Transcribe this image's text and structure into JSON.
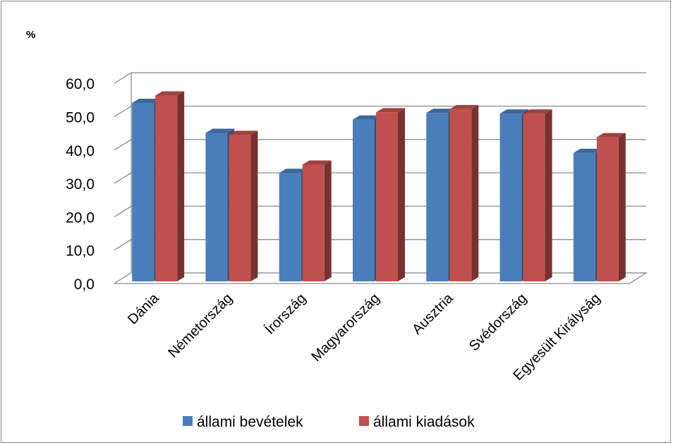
{
  "chart_data": {
    "type": "bar",
    "title": "",
    "unit_label": "%",
    "categories": [
      "Dánia",
      "Németország",
      "Írország",
      "Magyarország",
      "Ausztria",
      "Svédország",
      "Egyesült Királyság"
    ],
    "series": [
      {
        "name": "állami bevételek",
        "color": "#4a7ebb",
        "values": [
          53.5,
          44.5,
          32.5,
          48.5,
          50.5,
          50.3,
          38.5
        ]
      },
      {
        "name": "állami kiadások",
        "color": "#c0504d",
        "values": [
          55.7,
          43.9,
          35.0,
          50.7,
          51.6,
          50.3,
          43.2
        ]
      }
    ],
    "y_ticks": [
      "0,0",
      "10,0",
      "20,0",
      "30,0",
      "40,0",
      "50,0",
      "60,0"
    ],
    "ylim": [
      0,
      60
    ],
    "grid": true,
    "legend_position": "bottom"
  }
}
